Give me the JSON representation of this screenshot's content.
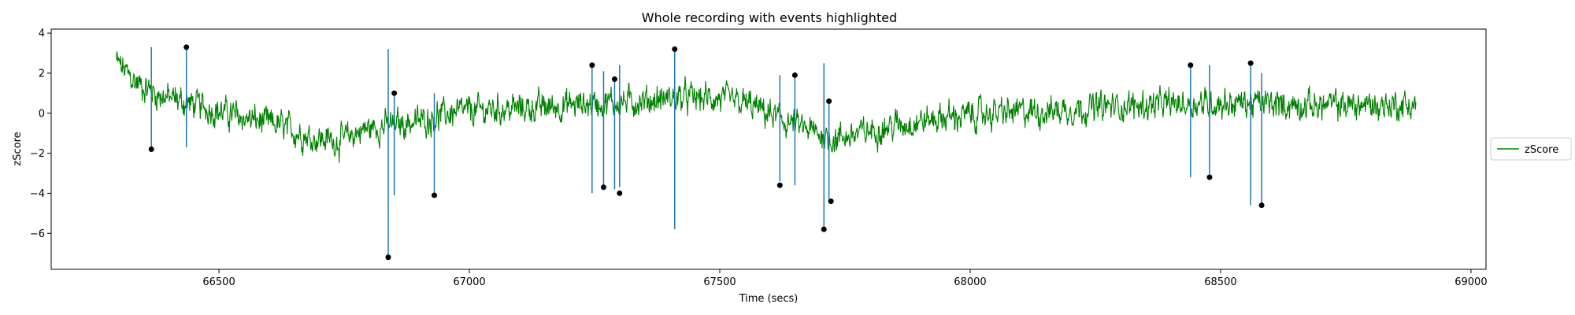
{
  "chart_data": {
    "type": "line",
    "title": "Whole recording with events highlighted",
    "xlabel": "Time (secs)",
    "ylabel": "zScore",
    "xlim": [
      66165,
      69030
    ],
    "ylim": [
      -7.8,
      4.2
    ],
    "xticks": [
      66500,
      67000,
      67500,
      68000,
      68500,
      69000
    ],
    "yticks": [
      4,
      2,
      0,
      -2,
      -4,
      -6
    ],
    "legend": {
      "position": "right",
      "entries": [
        "zScore"
      ]
    },
    "grid": false,
    "series": [
      {
        "name": "zScore",
        "color": "#008000",
        "x_start": 66295,
        "x_end": 68890,
        "baseline": [
          [
            66295,
            2.6
          ],
          [
            66330,
            1.6
          ],
          [
            66380,
            0.9
          ],
          [
            66440,
            0.5
          ],
          [
            66500,
            0.1
          ],
          [
            66560,
            -0.3
          ],
          [
            66620,
            -0.6
          ],
          [
            66680,
            -1.2
          ],
          [
            66740,
            -1.4
          ],
          [
            66790,
            -0.8
          ],
          [
            66840,
            -0.6
          ],
          [
            66900,
            -0.4
          ],
          [
            66960,
            0.0
          ],
          [
            67050,
            0.2
          ],
          [
            67150,
            0.3
          ],
          [
            67250,
            0.5
          ],
          [
            67350,
            0.6
          ],
          [
            67420,
            0.8
          ],
          [
            67500,
            0.7
          ],
          [
            67560,
            0.4
          ],
          [
            67620,
            -0.3
          ],
          [
            67680,
            -0.9
          ],
          [
            67730,
            -1.3
          ],
          [
            67780,
            -1.0
          ],
          [
            67850,
            -0.6
          ],
          [
            67950,
            -0.2
          ],
          [
            68050,
            0.0
          ],
          [
            68150,
            0.1
          ],
          [
            68250,
            0.3
          ],
          [
            68350,
            0.4
          ],
          [
            68450,
            0.5
          ],
          [
            68550,
            0.5
          ],
          [
            68650,
            0.4
          ],
          [
            68750,
            0.4
          ],
          [
            68890,
            0.4
          ]
        ],
        "noise_amplitude": 1.1
      }
    ],
    "events": {
      "color": "#1f77b4",
      "lines": [
        {
          "x": 66365,
          "y1": 3.3,
          "y2": -1.9
        },
        {
          "x": 66435,
          "y1": 3.2,
          "y2": -1.7
        },
        {
          "x": 66838,
          "y1": 3.2,
          "y2": -7.2
        },
        {
          "x": 66850,
          "y1": 1.0,
          "y2": -4.1
        },
        {
          "x": 66930,
          "y1": 1.0,
          "y2": -4.0
        },
        {
          "x": 67245,
          "y1": 2.4,
          "y2": -4.0
        },
        {
          "x": 67268,
          "y1": 2.1,
          "y2": -3.6
        },
        {
          "x": 67290,
          "y1": 1.7,
          "y2": -3.8
        },
        {
          "x": 67300,
          "y1": 2.4,
          "y2": -3.7
        },
        {
          "x": 67410,
          "y1": 3.2,
          "y2": -5.8
        },
        {
          "x": 67620,
          "y1": 1.9,
          "y2": -3.4
        },
        {
          "x": 67650,
          "y1": 1.8,
          "y2": -3.6
        },
        {
          "x": 67708,
          "y1": 2.5,
          "y2": -5.7
        },
        {
          "x": 67718,
          "y1": 0.5,
          "y2": -4.3
        },
        {
          "x": 68440,
          "y1": 2.4,
          "y2": -3.2
        },
        {
          "x": 68478,
          "y1": 2.4,
          "y2": -3.1
        },
        {
          "x": 68560,
          "y1": 2.5,
          "y2": -4.6
        },
        {
          "x": 68582,
          "y1": 2.0,
          "y2": -4.5
        }
      ]
    },
    "markers": [
      {
        "x": 66365,
        "y": -1.8
      },
      {
        "x": 66435,
        "y": 3.3
      },
      {
        "x": 66838,
        "y": -7.2
      },
      {
        "x": 66850,
        "y": 1.0
      },
      {
        "x": 66930,
        "y": -4.1
      },
      {
        "x": 67245,
        "y": 2.4
      },
      {
        "x": 67268,
        "y": -3.7
      },
      {
        "x": 67290,
        "y": 1.7
      },
      {
        "x": 67300,
        "y": -4.0
      },
      {
        "x": 67410,
        "y": 3.2
      },
      {
        "x": 67620,
        "y": -3.6
      },
      {
        "x": 67650,
        "y": 1.9
      },
      {
        "x": 67708,
        "y": -5.8
      },
      {
        "x": 67718,
        "y": 0.6
      },
      {
        "x": 67722,
        "y": -4.4
      },
      {
        "x": 68440,
        "y": 2.4
      },
      {
        "x": 68478,
        "y": -3.2
      },
      {
        "x": 68560,
        "y": 2.5
      },
      {
        "x": 68582,
        "y": -4.6
      }
    ]
  }
}
